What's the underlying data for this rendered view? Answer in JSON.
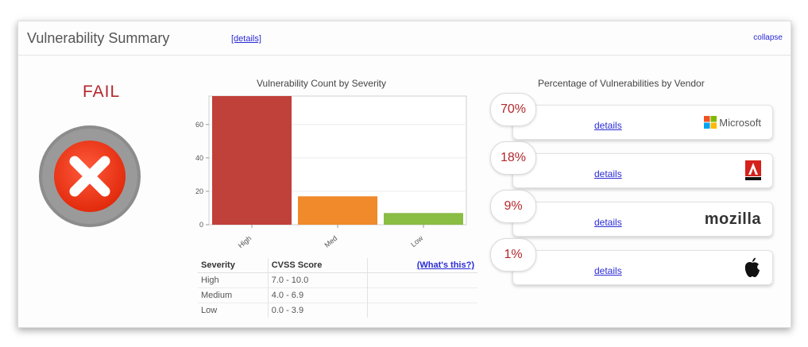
{
  "header": {
    "title": "Vulnerability Summary",
    "details_link": "[details]",
    "collapse": "collapse"
  },
  "status": {
    "result": "FAIL"
  },
  "severity_chart": {
    "title": "Vulnerability Count by Severity"
  },
  "chart_data": {
    "type": "bar",
    "title": "Vulnerability Count by Severity",
    "categories": [
      "High",
      "Med",
      "Low"
    ],
    "values": [
      77,
      17,
      7
    ],
    "colors": [
      "#c0403a",
      "#f08a2a",
      "#8abd43"
    ],
    "yticks": [
      0,
      20,
      40,
      60
    ],
    "ylim": [
      0,
      77
    ],
    "grid": true
  },
  "severity_table": {
    "headers": [
      "Severity",
      "CVSS Score"
    ],
    "help_link": "(What's this?)",
    "rows": [
      {
        "severity": "High",
        "score": "7.0 - 10.0"
      },
      {
        "severity": "Medium",
        "score": "4.0 - 6.9"
      },
      {
        "severity": "Low",
        "score": "0.0 - 3.9"
      }
    ]
  },
  "vendors": {
    "title": "Percentage of Vulnerabilities by Vendor",
    "items": [
      {
        "percent": "70%",
        "details": "details",
        "logo": "microsoft-logo",
        "name": "Microsoft"
      },
      {
        "percent": "18%",
        "details": "details",
        "logo": "adobe-logo",
        "name": "Adobe"
      },
      {
        "percent": "9%",
        "details": "details",
        "logo": "mozilla-logo",
        "name": "mozilla"
      },
      {
        "percent": "1%",
        "details": "details",
        "logo": "apple-logo",
        "name": ""
      }
    ]
  },
  "colors": {
    "fail_red": "#b3282d",
    "link_blue": "#2a2ad6"
  }
}
